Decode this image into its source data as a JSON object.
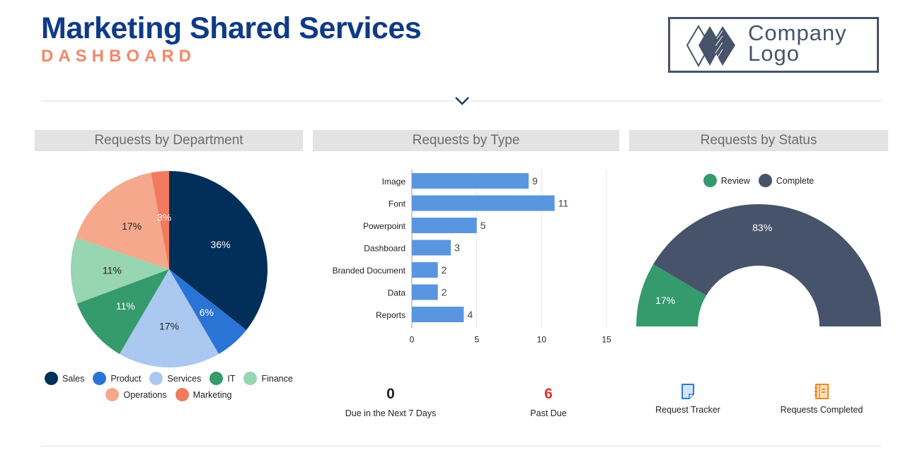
{
  "header": {
    "title": "Marketing Shared Services",
    "subtitle": "DASHBOARD",
    "logo_text_1": "Company",
    "logo_text_2": "Logo"
  },
  "panels": {
    "department": "Requests by Department",
    "type": "Requests by Type",
    "status": "Requests by Status"
  },
  "chart_data": [
    {
      "type": "pie",
      "title": "Requests by Department",
      "categories": [
        "Sales",
        "Product",
        "Services",
        "IT",
        "Finance",
        "Operations",
        "Marketing"
      ],
      "values": [
        36,
        6,
        17,
        11,
        11,
        17,
        3
      ],
      "labels": [
        "36%",
        "6%",
        "17%",
        "11%",
        "11%",
        "17%",
        "3%"
      ],
      "colors": [
        "#022f5a",
        "#2a74d6",
        "#abc8f0",
        "#359a6c",
        "#98d5b1",
        "#f6a88c",
        "#f27a5e"
      ],
      "label_colors": [
        "#fff",
        "#fff",
        "#222",
        "#fff",
        "#222",
        "#222",
        "#fff"
      ],
      "legend": "bottom"
    },
    {
      "type": "bar",
      "orientation": "horizontal",
      "title": "Requests by Type",
      "categories": [
        "Image",
        "Font",
        "Powerpoint",
        "Dashboard",
        "Branded Document",
        "Data",
        "Reports"
      ],
      "values": [
        9,
        11,
        5,
        3,
        2,
        2,
        4
      ],
      "xlim": [
        0,
        15
      ],
      "xticks": [
        "0",
        "5",
        "10",
        "15"
      ],
      "color": "#5a96e0",
      "grid": true
    },
    {
      "type": "pie",
      "subtype": "half-donut",
      "title": "Requests by Status",
      "categories": [
        "Review",
        "Complete"
      ],
      "values": [
        17,
        83
      ],
      "labels": [
        "17%",
        "83%"
      ],
      "colors": [
        "#359a6c",
        "#47536a"
      ],
      "legend": "top"
    }
  ],
  "kpis": [
    {
      "value": "0",
      "label": "Due in the Next 7 Days",
      "color": "#000"
    },
    {
      "value": "6",
      "label": "Past Due",
      "color": "#e8312a"
    }
  ],
  "links": [
    {
      "label": "Request Tracker",
      "icon": "document-icon"
    },
    {
      "label": "Requests Completed",
      "icon": "notebook-icon"
    }
  ]
}
